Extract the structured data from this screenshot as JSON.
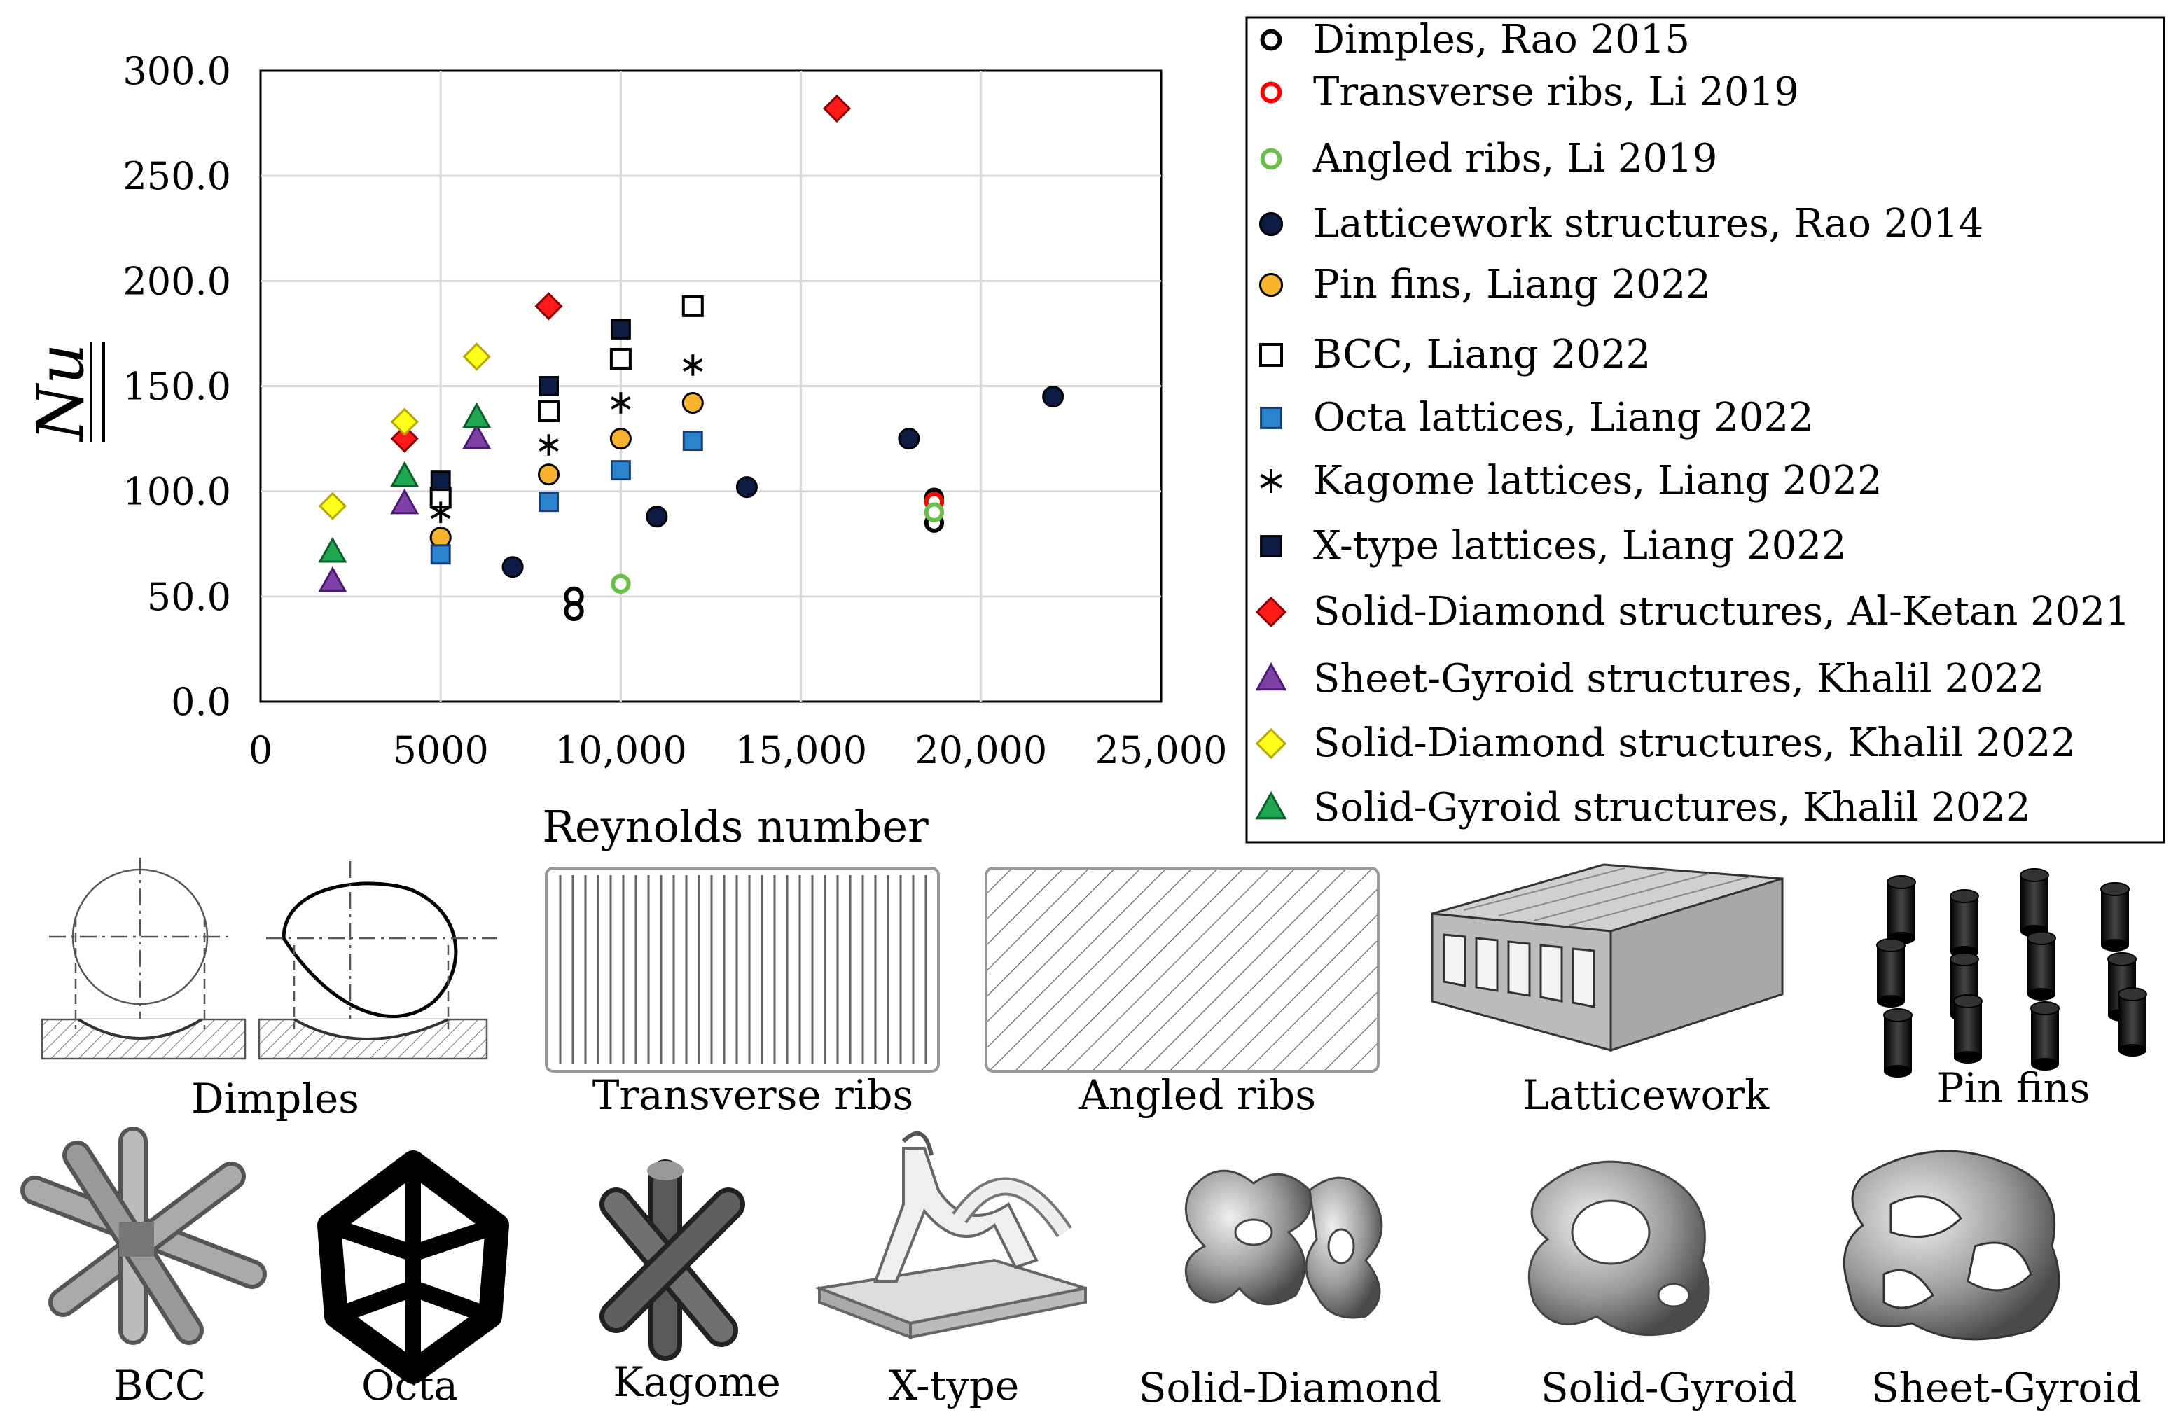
{
  "chart_data": {
    "type": "scatter",
    "title": "",
    "xlabel": "Reynolds number",
    "ylabel": "Nu",
    "xlim": [
      0,
      25000
    ],
    "ylim": [
      0,
      300
    ],
    "xticks": [
      "0",
      "5000",
      "10,000",
      "15,000",
      "20,000",
      "25,000"
    ],
    "yticks": [
      "0.0",
      "50.0",
      "100.0",
      "150.0",
      "200.0",
      "250.0",
      "300.0"
    ],
    "grid": true,
    "legend_position": "right",
    "series": [
      {
        "name": "Dimples, Rao 2015",
        "marker": "circle-open",
        "color": "#000000",
        "fill": "#ffffff",
        "points": [
          [
            8700,
            50
          ],
          [
            8700,
            43
          ],
          [
            18700,
            85
          ],
          [
            18700,
            97
          ]
        ]
      },
      {
        "name": "Transverse ribs, Li 2019",
        "marker": "circle-open",
        "color": "#ff0000",
        "fill": "#ffffff",
        "points": [
          [
            18700,
            95
          ]
        ]
      },
      {
        "name": "Angled ribs, Li 2019",
        "marker": "circle-open",
        "color": "#6abf4b",
        "fill": "#ffffff",
        "points": [
          [
            10000,
            56
          ],
          [
            18700,
            90
          ]
        ]
      },
      {
        "name": "Latticework structures, Rao 2014",
        "marker": "circle",
        "color": "#000000",
        "fill": "#0d1b45",
        "points": [
          [
            7000,
            64
          ],
          [
            11000,
            88
          ],
          [
            13500,
            102
          ],
          [
            18000,
            125
          ],
          [
            22000,
            145
          ]
        ]
      },
      {
        "name": "Pin fins, Liang 2022",
        "marker": "circle",
        "color": "#000000",
        "fill": "#f7b32b",
        "points": [
          [
            5000,
            78
          ],
          [
            8000,
            108
          ],
          [
            10000,
            125
          ],
          [
            12000,
            142
          ]
        ]
      },
      {
        "name": "BCC,  Liang 2022",
        "marker": "square-open",
        "color": "#000000",
        "fill": "#ffffff",
        "points": [
          [
            5000,
            97
          ],
          [
            8000,
            138
          ],
          [
            10000,
            163
          ],
          [
            12000,
            188
          ]
        ]
      },
      {
        "name": "Octa lattices, Liang 2022",
        "marker": "square",
        "color": "#1a3d73",
        "fill": "#2a83cc",
        "points": [
          [
            5000,
            70
          ],
          [
            8000,
            95
          ],
          [
            10000,
            110
          ],
          [
            12000,
            124
          ]
        ]
      },
      {
        "name": "Kagome lattices, Liang 2022",
        "marker": "asterisk",
        "color": "#000000",
        "fill": "#000000",
        "points": [
          [
            5000,
            90
          ],
          [
            8000,
            122
          ],
          [
            10000,
            142
          ],
          [
            12000,
            160
          ]
        ]
      },
      {
        "name": "X-type lattices, Liang 2022",
        "marker": "square",
        "color": "#000000",
        "fill": "#0d1b45",
        "points": [
          [
            5000,
            105
          ],
          [
            8000,
            150
          ],
          [
            10000,
            177
          ]
        ]
      },
      {
        "name": "Solid-Diamond structures, Al-Ketan 2021",
        "marker": "diamond",
        "color": "#8a0000",
        "fill": "#ff1a1a",
        "points": [
          [
            4000,
            125
          ],
          [
            8000,
            188
          ],
          [
            16000,
            282
          ]
        ]
      },
      {
        "name": "Sheet-Gyroid structures, Khalil 2022",
        "marker": "triangle",
        "color": "#4b1a73",
        "fill": "#7e3fa6",
        "points": [
          [
            2000,
            57
          ],
          [
            4000,
            94
          ],
          [
            6000,
            125
          ]
        ]
      },
      {
        "name": "Solid-Diamond structures, Khalil 2022",
        "marker": "diamond",
        "color": "#b8a600",
        "fill": "#ffff1a",
        "points": [
          [
            2000,
            93
          ],
          [
            4000,
            133
          ],
          [
            6000,
            164
          ]
        ]
      },
      {
        "name": "Solid-Gyroid structures, Khalil 2022",
        "marker": "triangle",
        "color": "#0a5e2a",
        "fill": "#1fa84f",
        "points": [
          [
            2000,
            71
          ],
          [
            4000,
            107
          ],
          [
            6000,
            135
          ]
        ]
      }
    ]
  },
  "structure_labels": {
    "dimples": "Dimples",
    "transverse_ribs": "Transverse ribs",
    "angled_ribs": "Angled ribs",
    "latticework": "Latticework",
    "pin_fins": "Pin fins",
    "bcc": "BCC",
    "octa": "Octa",
    "kagome": "Kagome",
    "x_type": "X-type",
    "solid_diamond": "Solid-Diamond",
    "solid_gyroid": "Solid-Gyroid",
    "sheet_gyroid": "Sheet-Gyroid"
  }
}
